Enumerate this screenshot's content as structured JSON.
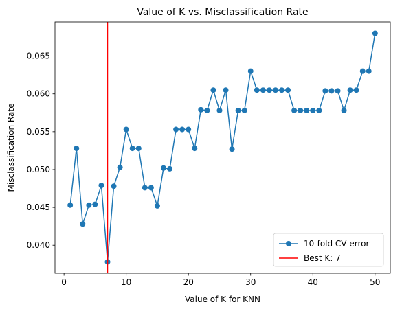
{
  "chart_data": {
    "type": "line",
    "title": "Value of K vs. Misclassification Rate",
    "xlabel": "Value of K for KNN",
    "ylabel": "Misclassification Rate",
    "xlim": [
      -1.45,
      52.45
    ],
    "ylim": [
      0.0363,
      0.0695
    ],
    "xticks": [
      0,
      10,
      20,
      30,
      40,
      50
    ],
    "xtick_labels": [
      "0",
      "10",
      "20",
      "30",
      "40",
      "50"
    ],
    "yticks": [
      0.04,
      0.045,
      0.05,
      0.055,
      0.06,
      0.065
    ],
    "ytick_labels": [
      "0.040",
      "0.045",
      "0.050",
      "0.055",
      "0.060",
      "0.065"
    ],
    "grid": false,
    "legend_position": "lower-right",
    "series": [
      {
        "name": "10-fold CV error",
        "color": "#1f77b4",
        "marker": "circle",
        "x": [
          1,
          2,
          3,
          4,
          5,
          6,
          7,
          8,
          9,
          10,
          11,
          12,
          13,
          14,
          15,
          16,
          17,
          18,
          19,
          20,
          21,
          22,
          23,
          24,
          25,
          26,
          27,
          28,
          29,
          30,
          31,
          32,
          33,
          34,
          35,
          36,
          37,
          38,
          39,
          40,
          41,
          42,
          43,
          44,
          45,
          46,
          47,
          48,
          49,
          50
        ],
        "y": [
          0.0453,
          0.0528,
          0.0428,
          0.0453,
          0.0454,
          0.0479,
          0.0378,
          0.0478,
          0.0503,
          0.0553,
          0.0528,
          0.0528,
          0.0476,
          0.0476,
          0.0452,
          0.0502,
          0.0501,
          0.0553,
          0.0553,
          0.0553,
          0.0528,
          0.0579,
          0.0578,
          0.0605,
          0.0578,
          0.0605,
          0.0527,
          0.0578,
          0.0578,
          0.063,
          0.0605,
          0.0605,
          0.0605,
          0.0605,
          0.0605,
          0.0605,
          0.0578,
          0.0578,
          0.0578,
          0.0578,
          0.0578,
          0.0604,
          0.0604,
          0.0604,
          0.0578,
          0.0605,
          0.0605,
          0.063,
          0.063,
          0.068
        ]
      }
    ],
    "vline": {
      "x": 7,
      "color": "#ff0000",
      "name": "Best K: 7"
    }
  }
}
